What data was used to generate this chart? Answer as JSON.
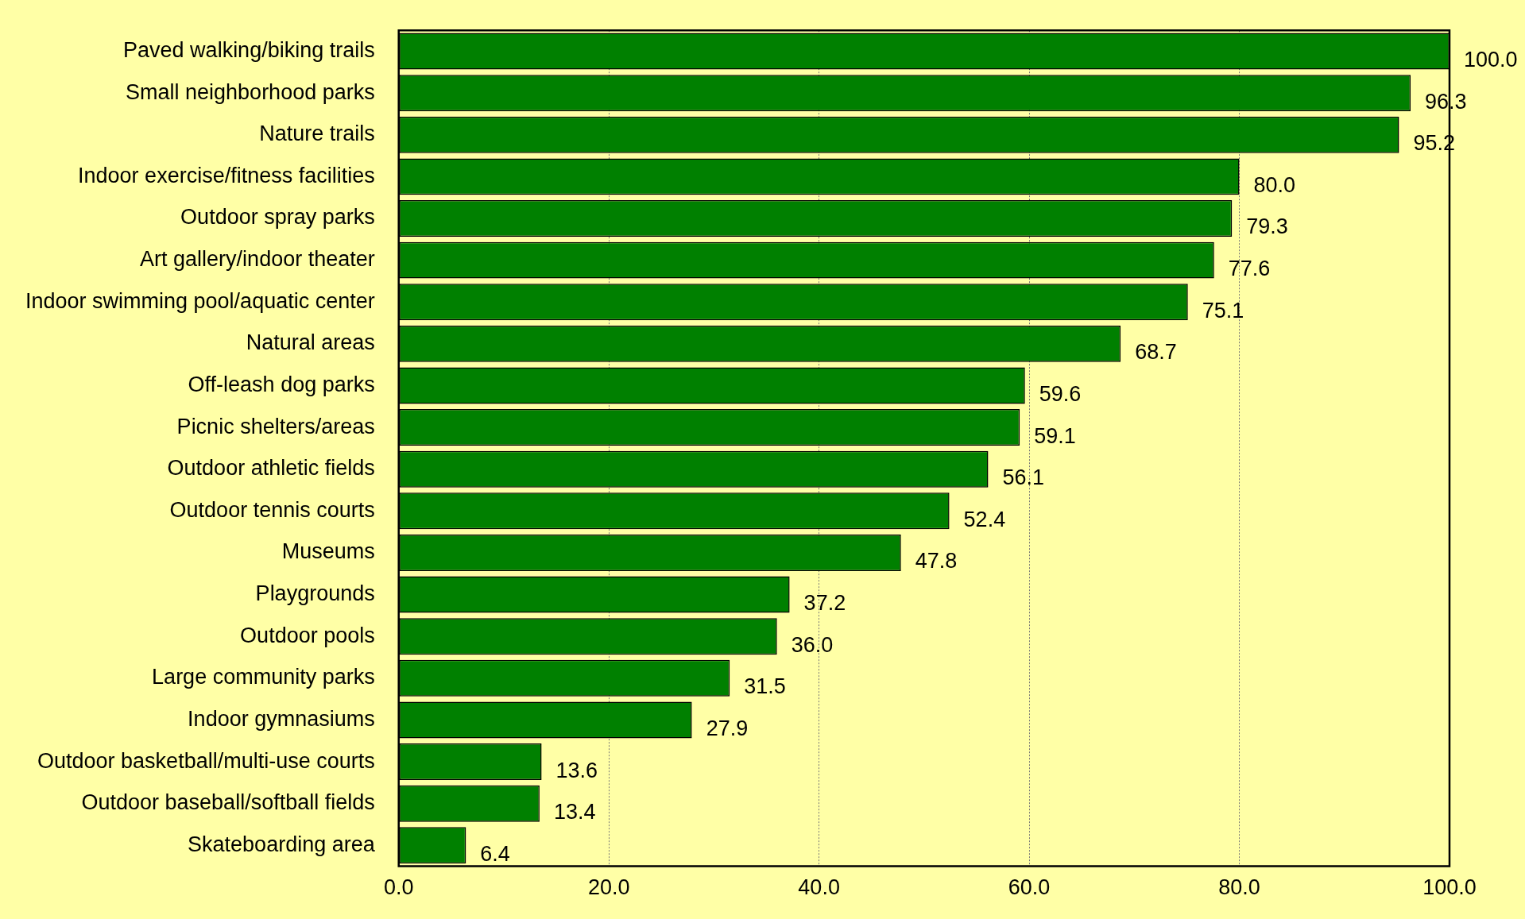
{
  "chart_data": {
    "type": "bar",
    "orientation": "horizontal",
    "categories": [
      "Paved walking/biking trails",
      "Small neighborhood parks",
      "Nature trails",
      "Indoor exercise/fitness facilities",
      "Outdoor spray parks",
      "Art gallery/indoor theater",
      "Indoor swimming pool/aquatic center",
      "Natural areas",
      "Off-leash dog parks",
      "Picnic shelters/areas",
      "Outdoor athletic fields",
      "Outdoor tennis courts",
      "Museums",
      "Playgrounds",
      "Outdoor pools",
      "Large community parks",
      "Indoor gymnasiums",
      "Outdoor basketball/multi-use courts",
      "Outdoor baseball/softball fields",
      "Skateboarding area"
    ],
    "values": [
      100.0,
      96.3,
      95.2,
      80.0,
      79.3,
      77.6,
      75.1,
      68.7,
      59.6,
      59.1,
      56.1,
      52.4,
      47.8,
      37.2,
      36.0,
      31.5,
      27.9,
      13.6,
      13.4,
      6.4
    ],
    "value_labels": [
      "100.0",
      "96.3",
      "95.2",
      "80.0",
      "79.3",
      "77.6",
      "75.1",
      "68.7",
      "59.6",
      "59.1",
      "56.1",
      "52.4",
      "47.8",
      "37.2",
      "36.0",
      "31.5",
      "27.9",
      "13.6",
      "13.4",
      "6.4"
    ],
    "color": "#008000",
    "xlim": [
      0,
      100
    ],
    "xticks": [
      {
        "value": 0,
        "label": "0.0"
      },
      {
        "value": 20,
        "label": "20.0"
      },
      {
        "value": 40,
        "label": "40.0"
      },
      {
        "value": 60,
        "label": "60.0"
      },
      {
        "value": 80,
        "label": "80.0"
      },
      {
        "value": 100,
        "label": "100.0"
      }
    ],
    "grid": "x",
    "legend": false
  }
}
